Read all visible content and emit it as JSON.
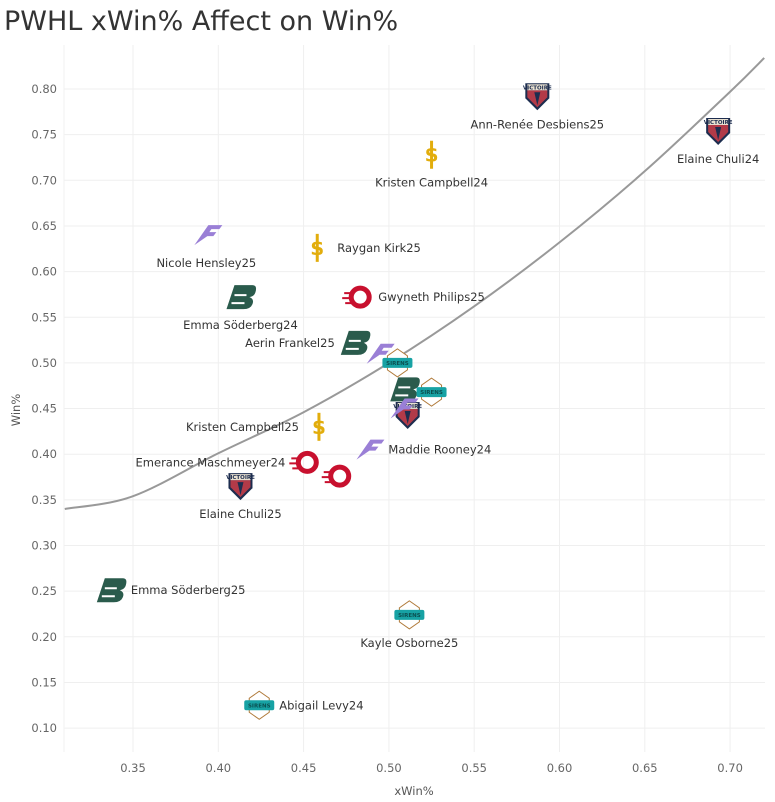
{
  "chart_data": {
    "type": "scatter",
    "title": "PWHL xWin% Affect on Win%",
    "xlabel": "xWin%",
    "ylabel": "Win%",
    "xlim": [
      0.31,
      0.72
    ],
    "ylim": [
      0.08,
      0.84
    ],
    "x_ticks": [
      "0.35",
      "0.40",
      "0.45",
      "0.50",
      "0.55",
      "0.60",
      "0.65",
      "0.70"
    ],
    "y_ticks": [
      "0.10",
      "0.15",
      "0.20",
      "0.25",
      "0.30",
      "0.35",
      "0.40",
      "0.45",
      "0.50",
      "0.55",
      "0.60",
      "0.65",
      "0.70",
      "0.75",
      "0.80"
    ],
    "grid": true,
    "marker": "team-logo",
    "team_colors": {
      "Victoire": "#1d2d4f",
      "Sceptres": "#e2ad0c",
      "Frost": "#9a7fd6",
      "Charge": "#c8102e",
      "Fleet": "#2a5b4c",
      "Sirens": "#17a2a4"
    },
    "trend_line": {
      "type": "curve",
      "color": "#999999",
      "points": [
        [
          0.31,
          0.34
        ],
        [
          0.35,
          0.354
        ],
        [
          0.4,
          0.401
        ],
        [
          0.45,
          0.446
        ],
        [
          0.5,
          0.5
        ],
        [
          0.55,
          0.562
        ],
        [
          0.6,
          0.632
        ],
        [
          0.65,
          0.71
        ],
        [
          0.7,
          0.797
        ],
        [
          0.72,
          0.834
        ]
      ]
    },
    "points": [
      {
        "x": 0.587,
        "y": 0.792,
        "team": "Victoire",
        "label": "Ann-Renée Desbiens25",
        "label_pos": "below"
      },
      {
        "x": 0.693,
        "y": 0.754,
        "team": "Victoire",
        "label": "Elaine Chuli24",
        "label_pos": "below"
      },
      {
        "x": 0.525,
        "y": 0.728,
        "team": "Sceptres",
        "label": "Kristen Campbell24",
        "label_pos": "below"
      },
      {
        "x": 0.458,
        "y": 0.626,
        "team": "Sceptres",
        "label": "Raygan Kirk25",
        "label_pos": "right"
      },
      {
        "x": 0.393,
        "y": 0.64,
        "team": "Frost",
        "label": "Nicole Hensley25",
        "label_pos": "below"
      },
      {
        "x": 0.482,
        "y": 0.572,
        "team": "Charge",
        "label": "Gwyneth Philips25",
        "label_pos": "right"
      },
      {
        "x": 0.413,
        "y": 0.572,
        "team": "Fleet",
        "label": "Emma Söderberg24",
        "label_pos": "below"
      },
      {
        "x": 0.48,
        "y": 0.522,
        "team": "Fleet",
        "label": "Aerin Frankel25",
        "label_pos": "left"
      },
      {
        "x": 0.494,
        "y": 0.51,
        "team": "Frost",
        "label": ""
      },
      {
        "x": 0.505,
        "y": 0.5,
        "team": "Sirens",
        "label": ""
      },
      {
        "x": 0.509,
        "y": 0.471,
        "team": "Fleet",
        "label": ""
      },
      {
        "x": 0.525,
        "y": 0.468,
        "team": "Sirens",
        "label": ""
      },
      {
        "x": 0.511,
        "y": 0.443,
        "team": "Victoire",
        "label": ""
      },
      {
        "x": 0.508,
        "y": 0.45,
        "team": "Frost",
        "label": ""
      },
      {
        "x": 0.488,
        "y": 0.405,
        "team": "Frost",
        "label": "Maddie Rooney24",
        "label_pos": "right"
      },
      {
        "x": 0.459,
        "y": 0.43,
        "team": "Sceptres",
        "label": "Kristen Campbell25",
        "label_pos": "left"
      },
      {
        "x": 0.451,
        "y": 0.391,
        "team": "Charge",
        "label": "Emerance Maschmeyer24",
        "label_pos": "left"
      },
      {
        "x": 0.47,
        "y": 0.376,
        "team": "Charge",
        "label": ""
      },
      {
        "x": 0.413,
        "y": 0.365,
        "team": "Victoire",
        "label": "Elaine Chuli25",
        "label_pos": "below"
      },
      {
        "x": 0.337,
        "y": 0.251,
        "team": "Fleet",
        "label": "Emma Söderberg25",
        "label_pos": "right"
      },
      {
        "x": 0.512,
        "y": 0.224,
        "team": "Sirens",
        "label": "Kayle Osborne25",
        "label_pos": "below"
      },
      {
        "x": 0.424,
        "y": 0.125,
        "team": "Sirens",
        "label": "Abigail Levy24",
        "label_pos": "right"
      }
    ]
  }
}
